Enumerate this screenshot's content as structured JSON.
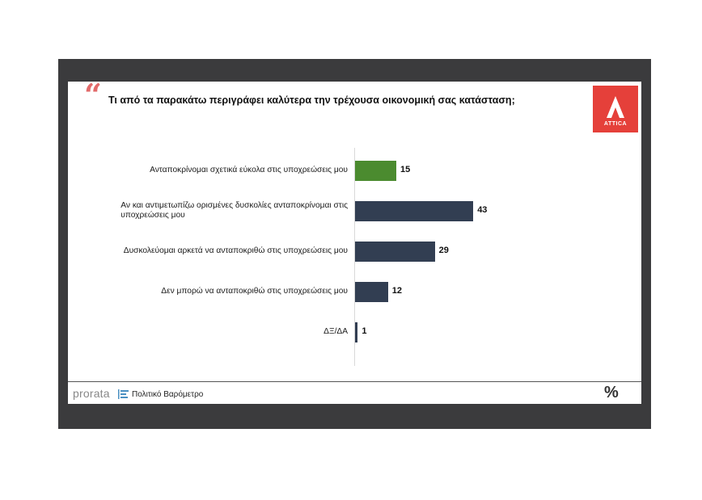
{
  "header": {
    "quote_mark": "“",
    "question": "Τι από τα παρακάτω περιγράφει καλύτερα την τρέχουσα οικονομική σας κατάσταση;"
  },
  "logo": {
    "text": "ATTICA",
    "color": "#e5403a",
    "icon": "attica-logo-icon"
  },
  "footer": {
    "brand": "prorata",
    "subtitle": "Πολιτικό Βαρόμετρο",
    "icon": "percent-icon"
  },
  "colors": {
    "green": "#4b8b2f",
    "navy": "#323e52"
  },
  "chart_data": {
    "type": "bar",
    "orientation": "horizontal",
    "categories": [
      [
        "Ανταποκρίνομαι σχετικά εύκολα στις υποχρεώσεις μου"
      ],
      [
        "Αν και αντιμετωπίζω ορισμένες δυσκολίες ανταποκρίνομαι στις",
        "υποχρεώσεις μου"
      ],
      [
        "Δυσκολεύομαι αρκετά να ανταποκριθώ στις υποχρεώσεις μου"
      ],
      [
        "Δεν μπορώ να ανταποκριθώ στις υποχρεώσεις μου"
      ],
      [
        "ΔΞ/ΔΑ"
      ]
    ],
    "values": [
      15,
      43,
      29,
      12,
      1
    ],
    "bar_colors": [
      "#4b8b2f",
      "#323e52",
      "#323e52",
      "#323e52",
      "#323e52"
    ],
    "xlim": [
      0,
      100
    ],
    "data_labels": true,
    "grid": false
  }
}
